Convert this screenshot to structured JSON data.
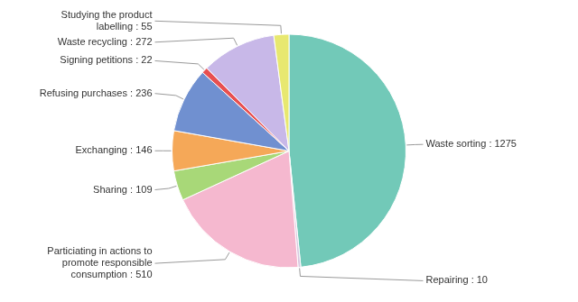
{
  "chart_data": {
    "type": "pie",
    "categories": [
      "Waste sorting : 1275",
      "Repairing : 10",
      "Particiating in actions to\npromote responsible\nconsumption : 510",
      "Sharing : 109",
      "Exchanging : 146",
      "Refusing purchases : 236",
      "Signing petitions : 22",
      "Waste recycling : 272",
      "Studying the product\nlabelling : 55"
    ],
    "values": [
      1275,
      10,
      510,
      109,
      146,
      236,
      22,
      272,
      55
    ],
    "colors": [
      "#72c9b8",
      "#d8c8e0",
      "#f5b8cf",
      "#a8d878",
      "#f5a858",
      "#7090d0",
      "#e85050",
      "#c8b8e8",
      "#e8e870"
    ]
  }
}
